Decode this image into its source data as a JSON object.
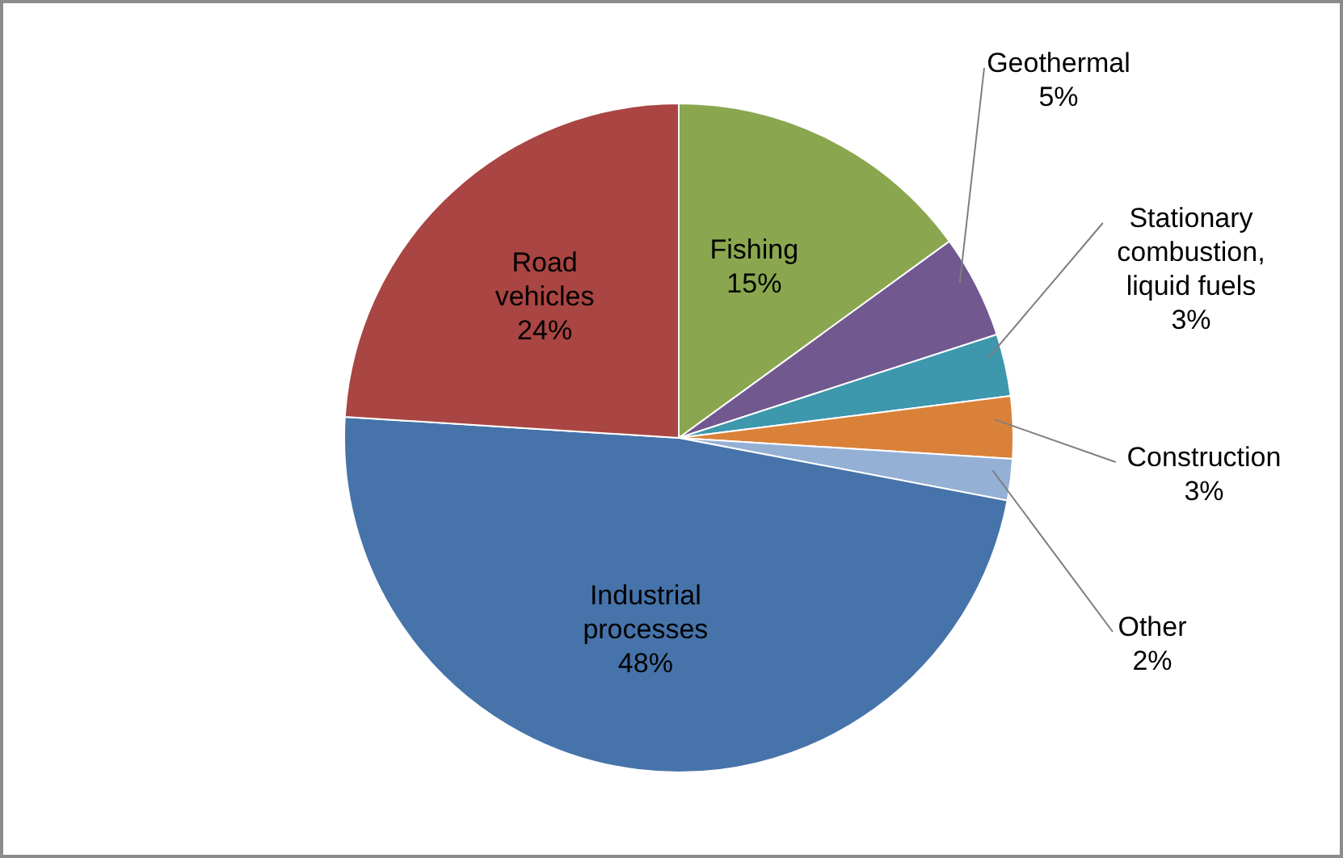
{
  "chart_data": {
    "type": "pie",
    "categories": [
      "Fishing",
      "Geothermal",
      "Stationary combustion, liquid fuels",
      "Construction",
      "Other",
      "Industrial processes",
      "Road vehicles"
    ],
    "values": [
      15,
      5,
      3,
      3,
      2,
      48,
      24
    ],
    "value_labels": [
      "15%",
      "5%",
      "3%",
      "3%",
      "2%",
      "48%",
      "24%"
    ],
    "colors": [
      "#8aa74f",
      "#71588f",
      "#3d97ad",
      "#da8139",
      "#95b0d5",
      "#4673a9",
      "#a94542"
    ],
    "legend": false
  }
}
